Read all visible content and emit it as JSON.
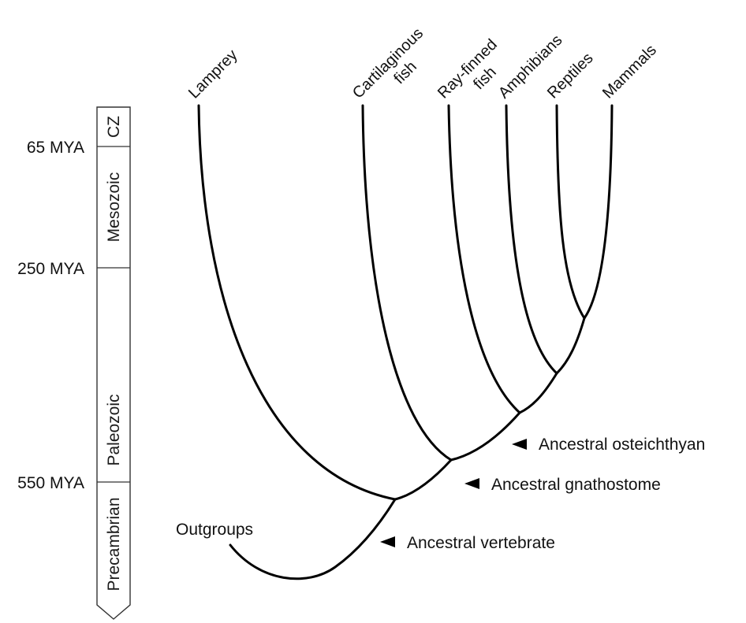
{
  "timescale": {
    "markers": [
      {
        "label": "65 MYA"
      },
      {
        "label": "250 MYA"
      },
      {
        "label": "550 MYA"
      }
    ],
    "eras": [
      {
        "label": "CZ"
      },
      {
        "label": "Mesozoic"
      },
      {
        "label": "Paleozoic"
      },
      {
        "label": "Precambrian"
      }
    ],
    "colors": {
      "top": "#3f8a3c",
      "middle": "#6aa957",
      "bottom": "#dde6f3"
    }
  },
  "taxa": [
    {
      "label": "Lamprey"
    },
    {
      "label": "Cartilaginous fish"
    },
    {
      "label": "Ray-finned fish"
    },
    {
      "label": "Amphibians"
    },
    {
      "label": "Reptiles"
    },
    {
      "label": "Mammals"
    }
  ],
  "outgroup": {
    "label": "Outgroups"
  },
  "nodes": [
    {
      "label": "Ancestral osteichthyan"
    },
    {
      "label": "Ancestral gnathostome"
    },
    {
      "label": "Ancestral vertebrate"
    }
  ]
}
